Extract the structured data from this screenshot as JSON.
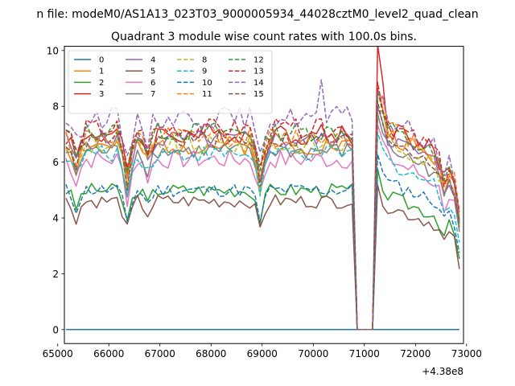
{
  "figure": {
    "suptitle": "n file: modeM0/AS1A13_023T03_9000005934_44028cztM0_level2_quad_clean",
    "title": "Quadrant 3 module wise count rates with 100.0s bins.",
    "offset_text": "+4.38e8"
  },
  "chart_data": {
    "type": "line",
    "title": "Quadrant 3 module wise count rates with 100.0s bins.",
    "xlabel": "",
    "ylabel": "",
    "x_offset": 438000000,
    "xlim": [
      65130,
      72940
    ],
    "ylim": [
      -0.5,
      10.15
    ],
    "xticks": [
      65000,
      66000,
      67000,
      68000,
      69000,
      70000,
      71000,
      72000,
      73000
    ],
    "xtick_labels": [
      "65000",
      "66000",
      "67000",
      "68000",
      "69000",
      "70000",
      "71000",
      "72000",
      "73000"
    ],
    "yticks": [
      0,
      2,
      4,
      6,
      8,
      10
    ],
    "ytick_labels": [
      "0",
      "2",
      "4",
      "6",
      "8",
      "10"
    ],
    "x_start": 65160,
    "x_step": 100,
    "n_points": 78,
    "legend": {
      "location": "upper-left",
      "ncol": 4
    },
    "gap": {
      "from_x": 70860,
      "to_x": 71160,
      "value": 0
    },
    "series": [
      {
        "name": "0",
        "color": "#1f77b4",
        "dash": "solid",
        "base": 0.0,
        "amp": 0.0,
        "post_shift": 0.0,
        "after_bump": 0.0,
        "seed": 1
      },
      {
        "name": "1",
        "color": "#ff7f0e",
        "dash": "solid",
        "base": 6.6,
        "amp": 0.35,
        "post_shift": 0.7,
        "after_bump": 1.6,
        "seed": 2
      },
      {
        "name": "2",
        "color": "#2ca02c",
        "dash": "solid",
        "base": 5.0,
        "amp": 0.25,
        "post_shift": 0.0,
        "after_bump": 0.6,
        "seed": 3
      },
      {
        "name": "3",
        "color": "#d62728",
        "dash": "solid",
        "base": 7.0,
        "amp": 0.4,
        "post_shift": 0.6,
        "after_bump": 2.6,
        "seed": 4
      },
      {
        "name": "4",
        "color": "#9467bd",
        "dash": "solid",
        "base": 6.8,
        "amp": 0.35,
        "post_shift": 0.4,
        "after_bump": 1.0,
        "seed": 5
      },
      {
        "name": "5",
        "color": "#8c564b",
        "dash": "solid",
        "base": 4.6,
        "amp": 0.25,
        "post_shift": 0.0,
        "after_bump": 0.4,
        "seed": 6
      },
      {
        "name": "6",
        "color": "#e377c2",
        "dash": "solid",
        "base": 6.1,
        "amp": 0.35,
        "post_shift": 0.3,
        "after_bump": 0.9,
        "seed": 7
      },
      {
        "name": "7",
        "color": "#7f7f7f",
        "dash": "solid",
        "base": 6.4,
        "amp": 0.3,
        "post_shift": 0.4,
        "after_bump": 1.1,
        "seed": 8
      },
      {
        "name": "8",
        "color": "#bcbd22",
        "dash": "dashed",
        "base": 6.6,
        "amp": 0.35,
        "post_shift": 0.5,
        "after_bump": 1.2,
        "seed": 9
      },
      {
        "name": "9",
        "color": "#17becf",
        "dash": "dashed",
        "base": 6.3,
        "amp": 0.3,
        "post_shift": 0.0,
        "after_bump": 0.7,
        "seed": 10
      },
      {
        "name": "10",
        "color": "#1f77b4",
        "dash": "dashed",
        "base": 5.0,
        "amp": 0.25,
        "post_shift": 0.5,
        "after_bump": 0.9,
        "seed": 11
      },
      {
        "name": "11",
        "color": "#ff7f0e",
        "dash": "dashed",
        "base": 6.9,
        "amp": 0.35,
        "post_shift": 0.7,
        "after_bump": 1.3,
        "seed": 12
      },
      {
        "name": "12",
        "color": "#2ca02c",
        "dash": "dashed",
        "base": 7.1,
        "amp": 0.35,
        "post_shift": 0.4,
        "after_bump": 1.0,
        "seed": 13
      },
      {
        "name": "13",
        "color": "#d62728",
        "dash": "dashed",
        "base": 7.2,
        "amp": 0.35,
        "post_shift": 0.5,
        "after_bump": 1.3,
        "seed": 14
      },
      {
        "name": "14",
        "color": "#9467bd",
        "dash": "dashed",
        "base": 7.6,
        "amp": 0.4,
        "post_shift": 0.3,
        "after_bump": 1.0,
        "seed": 15
      },
      {
        "name": "15",
        "color": "#8c564b",
        "dash": "dashed",
        "base": 6.8,
        "amp": 0.3,
        "post_shift": 0.4,
        "after_bump": 0.9,
        "seed": 16
      }
    ],
    "dips": [
      {
        "x": 65360,
        "depth": 0.9
      },
      {
        "x": 66360,
        "depth": 1.6
      },
      {
        "x": 66760,
        "depth": 0.7
      },
      {
        "x": 68960,
        "depth": 1.5
      },
      {
        "x": 72560,
        "depth": 0.8
      },
      {
        "x": 72860,
        "depth": 1.8
      }
    ],
    "spike": {
      "x": 70160,
      "series": "14",
      "value": 8.95
    }
  }
}
